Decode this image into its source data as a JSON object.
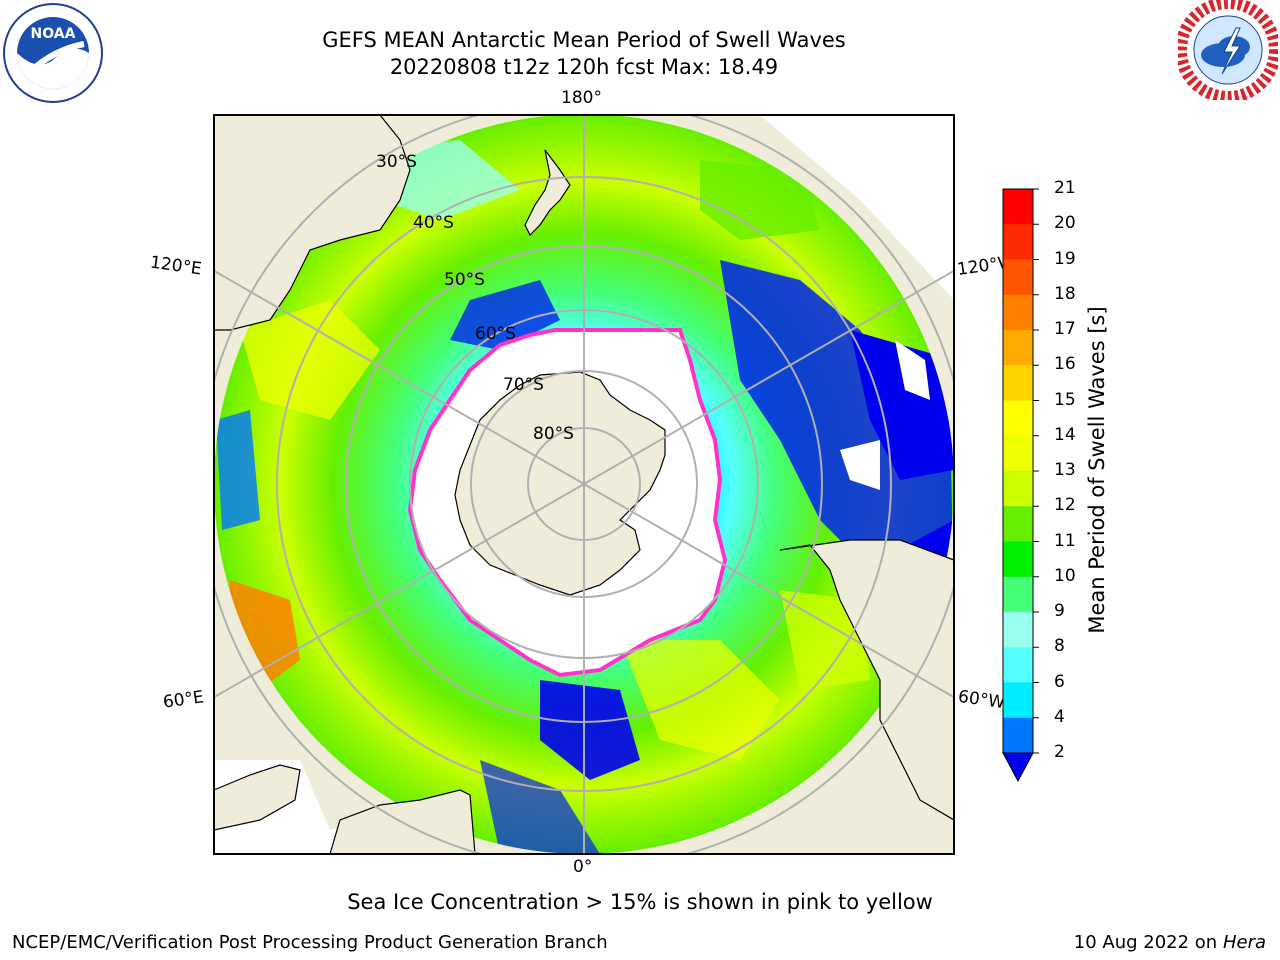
{
  "header": {
    "title_line1": "GEFS MEAN Antarctic Mean Period of Swell Waves",
    "title_line2": "20220808 t12z 120h fcst   Max: 18.49"
  },
  "logos": {
    "left": {
      "name": "noaa-logo",
      "text": "NOAA"
    },
    "right": {
      "name": "nws-logo",
      "text": "NATIONAL WEATHER SERVICE"
    }
  },
  "map": {
    "projection": "south-polar-stereographic",
    "longitude_labels": {
      "top": "180°",
      "bottom": "0°",
      "upper_left": "120°E",
      "upper_right": "120°W",
      "lower_left": "60°E",
      "lower_right": "60°W"
    },
    "latitude_labels": [
      "30°S",
      "40°S",
      "50°S",
      "60°S",
      "70°S",
      "80°S"
    ],
    "colors": {
      "land": "#efedda",
      "ice_edge": "#ff33cc",
      "ocean_low": "#0000ee",
      "ocean_high": "#ff0000"
    }
  },
  "colorbar": {
    "label": "Mean Period of Swell Waves [s]",
    "ticks": [
      "21",
      "20",
      "19",
      "18",
      "17",
      "16",
      "15",
      "14",
      "13",
      "12",
      "11",
      "10",
      "9",
      "8",
      "6",
      "4",
      "2"
    ],
    "colors": [
      "#ff0000",
      "#ff2a00",
      "#ff5500",
      "#ff8000",
      "#ffaa00",
      "#ffd500",
      "#ffff00",
      "#eeff00",
      "#ccff00",
      "#66ee00",
      "#00ee00",
      "#44ff77",
      "#99ffee",
      "#55ffff",
      "#00eeff",
      "#0077ff",
      "#0022ee"
    ],
    "under_color": "#0000ee"
  },
  "note": "Sea Ice Concentration > 15% is shown in pink to yellow",
  "footer": {
    "left": "NCEP/EMC/Verification Post Processing Product Generation Branch",
    "right_date": "10 Aug 2022 on",
    "right_host": "Hera"
  }
}
